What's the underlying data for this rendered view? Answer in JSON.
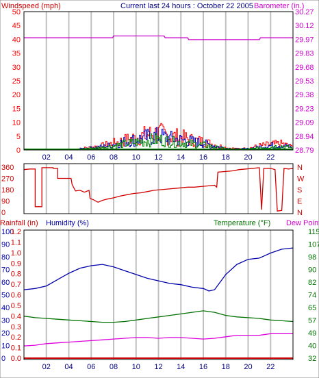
{
  "colors": {
    "background": "#ffffff",
    "grid": "#c0c0c0",
    "frame": "#000000",
    "wind": "#ff0000",
    "wind_gust": "#0000c0",
    "wind_low": "#008000",
    "barometer": "#cc00cc",
    "direction": "#d00000",
    "rainfall": "#cc0000",
    "humidity": "#0000aa",
    "temperature": "#007000",
    "dewpoint": "#dd00dd"
  },
  "header": {
    "left_label": "Windspeed (mph)",
    "title": "Current last 24 hours : October 22 2005",
    "right_label": "Barometer (in.)"
  },
  "chart_data": [
    {
      "type": "line",
      "panel": "wind-barometer",
      "x_ticks": [
        "02",
        "04",
        "06",
        "08",
        "10",
        "12",
        "14",
        "16",
        "18",
        "20",
        "22"
      ],
      "x_range_hours": [
        0,
        24
      ],
      "grid": true,
      "y_left": {
        "label": "Windspeed (mph)",
        "ticks": [
          "0",
          "5",
          "10",
          "15",
          "20",
          "25",
          "30",
          "35",
          "40",
          "45",
          "50"
        ],
        "range": [
          0,
          50
        ]
      },
      "y_right": {
        "label": "Barometer (in.)",
        "ticks": [
          "28.79",
          "28.94",
          "29.09",
          "29.23",
          "29.38",
          "29.53",
          "29.68",
          "29.83",
          "29.97",
          "30.12",
          "30.27"
        ],
        "range": [
          28.79,
          30.27
        ]
      },
      "series": [
        {
          "color_key": "barometer",
          "axis": "right",
          "points": [
            [
              0,
              29.99
            ],
            [
              6.0,
              29.99
            ],
            [
              6.0,
              29.99
            ],
            [
              7.9,
              29.99
            ],
            [
              8.0,
              30.01
            ],
            [
              12.5,
              30.01
            ],
            [
              12.6,
              29.99
            ],
            [
              14.6,
              29.99
            ],
            [
              14.7,
              29.97
            ],
            [
              21.0,
              29.97
            ],
            [
              21.1,
              29.99
            ],
            [
              24,
              29.99
            ]
          ]
        },
        {
          "color_key": "wind",
          "axis": "left",
          "profile": [
            [
              0,
              0
            ],
            [
              4.5,
              0.2
            ],
            [
              6,
              1
            ],
            [
              7,
              1.6
            ],
            [
              8,
              2.5
            ],
            [
              9,
              3.5
            ],
            [
              10,
              4.5
            ],
            [
              11,
              5.5
            ],
            [
              12,
              6
            ],
            [
              13,
              5
            ],
            [
              14,
              4.5
            ],
            [
              15,
              3.5
            ],
            [
              16,
              3
            ],
            [
              17,
              1.8
            ],
            [
              18,
              0.8
            ],
            [
              19,
              0.4
            ],
            [
              20,
              0.6
            ],
            [
              21,
              1.5
            ],
            [
              22,
              2
            ],
            [
              23,
              2.2
            ],
            [
              24,
              1
            ]
          ],
          "peak": 11
        },
        {
          "color_key": "wind_gust",
          "axis": "left",
          "profile": [
            [
              0,
              0
            ],
            [
              4.5,
              0.2
            ],
            [
              6,
              0.8
            ],
            [
              7,
              1.2
            ],
            [
              8,
              2
            ],
            [
              9,
              3
            ],
            [
              10,
              3.8
            ],
            [
              11,
              4.6
            ],
            [
              12,
              5
            ],
            [
              13,
              4.2
            ],
            [
              14,
              3.6
            ],
            [
              15,
              3
            ],
            [
              16,
              2.4
            ],
            [
              17,
              1.4
            ],
            [
              18,
              0.6
            ],
            [
              19,
              0.3
            ],
            [
              20,
              0.4
            ],
            [
              21,
              1.1
            ],
            [
              22,
              1.6
            ],
            [
              23,
              1.8
            ],
            [
              24,
              0.8
            ]
          ],
          "peak": 9
        },
        {
          "color_key": "wind_low",
          "axis": "left",
          "profile": [
            [
              0,
              0
            ],
            [
              4.5,
              0.1
            ],
            [
              6,
              0.6
            ],
            [
              7,
              0.9
            ],
            [
              8,
              1.5
            ],
            [
              9,
              2.2
            ],
            [
              10,
              2.8
            ],
            [
              11,
              3.4
            ],
            [
              12,
              3.8
            ],
            [
              13,
              3
            ],
            [
              14,
              2.6
            ],
            [
              15,
              2.2
            ],
            [
              16,
              1.8
            ],
            [
              17,
              1
            ],
            [
              18,
              0.4
            ],
            [
              19,
              0.2
            ],
            [
              20,
              0.3
            ],
            [
              21,
              0.8
            ],
            [
              22,
              1.2
            ],
            [
              23,
              1.4
            ],
            [
              24,
              0.6
            ]
          ],
          "peak": 7
        }
      ]
    },
    {
      "type": "line",
      "panel": "wind-direction",
      "x_range_hours": [
        0,
        24
      ],
      "grid": true,
      "y_left": {
        "ticks": [
          "0",
          "90",
          "180",
          "270",
          "360"
        ],
        "range": [
          0,
          360
        ]
      },
      "y_right": {
        "ticks": [
          "N",
          "E",
          "S",
          "W",
          "N"
        ]
      },
      "series": [
        {
          "color_key": "direction",
          "points": [
            [
              0,
              340
            ],
            [
              0.5,
              345
            ],
            [
              1.0,
              345
            ],
            [
              1.0,
              45
            ],
            [
              1.6,
              45
            ],
            [
              1.6,
              355
            ],
            [
              2.6,
              355
            ],
            [
              2.6,
              350
            ],
            [
              3.0,
              350
            ],
            [
              3.0,
              270
            ],
            [
              4.2,
              270
            ],
            [
              4.3,
              220
            ],
            [
              4.6,
              170
            ],
            [
              5.0,
              175
            ],
            [
              5.4,
              160
            ],
            [
              5.8,
              175
            ],
            [
              5.9,
              110
            ],
            [
              6.2,
              100
            ],
            [
              6.6,
              80
            ],
            [
              7.0,
              95
            ],
            [
              7.4,
              105
            ],
            [
              8.0,
              115
            ],
            [
              8.6,
              130
            ],
            [
              9.2,
              140
            ],
            [
              9.8,
              150
            ],
            [
              10.4,
              155
            ],
            [
              11.0,
              165
            ],
            [
              11.6,
              175
            ],
            [
              12.2,
              180
            ],
            [
              12.8,
              185
            ],
            [
              13.4,
              190
            ],
            [
              14.0,
              195
            ],
            [
              14.6,
              200
            ],
            [
              15.2,
              200
            ],
            [
              15.8,
              205
            ],
            [
              16.4,
              210
            ],
            [
              17.0,
              215
            ],
            [
              17.2,
              200
            ],
            [
              17.3,
              320
            ],
            [
              18.0,
              325
            ],
            [
              18.6,
              330
            ],
            [
              19.2,
              340
            ],
            [
              19.8,
              345
            ],
            [
              20.4,
              350
            ],
            [
              21.0,
              355
            ],
            [
              21.2,
              20
            ],
            [
              21.4,
              350
            ],
            [
              22.0,
              350
            ],
            [
              22.4,
              340
            ],
            [
              22.6,
              10
            ],
            [
              23.0,
              15
            ],
            [
              23.2,
              350
            ],
            [
              23.6,
              345
            ],
            [
              24,
              350
            ]
          ]
        }
      ]
    },
    {
      "type": "line",
      "panel": "rain-humidity-temperature",
      "x_ticks": [
        "02",
        "04",
        "06",
        "08",
        "10",
        "12",
        "14",
        "16",
        "18",
        "20",
        "22"
      ],
      "x_range_hours": [
        0,
        24
      ],
      "grid": true,
      "labels": {
        "rainfall": "Rainfall (in)",
        "humidity": "Humidity (%)",
        "temperature": "Temperature (°F)",
        "dewpoint": "Dew Point"
      },
      "y_humidity": {
        "ticks": [
          "0",
          "10",
          "20",
          "30",
          "40",
          "50",
          "60",
          "70",
          "80",
          "90",
          "100"
        ],
        "range": [
          0,
          100
        ]
      },
      "y_rain": {
        "ticks": [
          "0.0",
          "0.1",
          "0.2",
          "0.3",
          "0.4",
          "0.5",
          "0.6",
          "0.7",
          "0.8",
          "0.9",
          "1.0",
          "1.1",
          "1.2"
        ],
        "range": [
          0,
          1.2
        ]
      },
      "y_temperature": {
        "ticks": [
          "32",
          "40",
          "49",
          "57",
          "65",
          "74",
          "82",
          "90",
          "98",
          "107",
          "115"
        ],
        "range": [
          32,
          115
        ]
      },
      "series": [
        {
          "name": "Humidity",
          "color_key": "humidity",
          "axis": "humidity",
          "points": [
            [
              0,
              54
            ],
            [
              1,
              55
            ],
            [
              2,
              57
            ],
            [
              3,
              62
            ],
            [
              4,
              67
            ],
            [
              5,
              71
            ],
            [
              6,
              73
            ],
            [
              7,
              74
            ],
            [
              8,
              72
            ],
            [
              9,
              69
            ],
            [
              10,
              66
            ],
            [
              11,
              63
            ],
            [
              12,
              61
            ],
            [
              13,
              59
            ],
            [
              14,
              58
            ],
            [
              15,
              56
            ],
            [
              16,
              55
            ],
            [
              16.5,
              53
            ],
            [
              17,
              54
            ],
            [
              17.5,
              60
            ],
            [
              18,
              66
            ],
            [
              19,
              74
            ],
            [
              20,
              78
            ],
            [
              21,
              79
            ],
            [
              22,
              83
            ],
            [
              23,
              86
            ],
            [
              24,
              87
            ]
          ]
        },
        {
          "name": "Temperature",
          "color_key": "temperature",
          "axis": "temperature",
          "points": [
            [
              0,
              59.5
            ],
            [
              1,
              58.5
            ],
            [
              2,
              58
            ],
            [
              3,
              57.5
            ],
            [
              4,
              57
            ],
            [
              5,
              56.5
            ],
            [
              6,
              56
            ],
            [
              7,
              55.5
            ],
            [
              8,
              55.5
            ],
            [
              9,
              56
            ],
            [
              10,
              57
            ],
            [
              11,
              58
            ],
            [
              12,
              59
            ],
            [
              13,
              60
            ],
            [
              14,
              61
            ],
            [
              15,
              62
            ],
            [
              16,
              63
            ],
            [
              17,
              62
            ],
            [
              18,
              60
            ],
            [
              19,
              59
            ],
            [
              20,
              58.5
            ],
            [
              21,
              58
            ],
            [
              22,
              57
            ],
            [
              23,
              56.5
            ],
            [
              24,
              56
            ]
          ]
        },
        {
          "name": "Dew Point",
          "color_key": "dewpoint",
          "axis": "temperature",
          "points": [
            [
              0,
              40
            ],
            [
              1,
              40.5
            ],
            [
              2,
              41.5
            ],
            [
              3,
              42
            ],
            [
              4,
              42.5
            ],
            [
              5,
              43
            ],
            [
              6,
              43.5
            ],
            [
              7,
              44
            ],
            [
              8,
              44.5
            ],
            [
              9,
              45
            ],
            [
              10,
              45.5
            ],
            [
              11,
              45.5
            ],
            [
              12,
              45
            ],
            [
              13,
              45.5
            ],
            [
              14,
              45.5
            ],
            [
              15,
              45
            ],
            [
              16,
              44.5
            ],
            [
              17,
              45
            ],
            [
              18,
              46
            ],
            [
              19,
              47
            ],
            [
              20,
              47
            ],
            [
              21,
              47
            ],
            [
              22,
              48
            ],
            [
              23,
              48
            ],
            [
              24,
              48
            ]
          ]
        },
        {
          "name": "Rainfall",
          "color_key": "rainfall",
          "axis": "rain",
          "points": [
            [
              0,
              0.0
            ],
            [
              24,
              0.0
            ]
          ]
        }
      ]
    }
  ]
}
